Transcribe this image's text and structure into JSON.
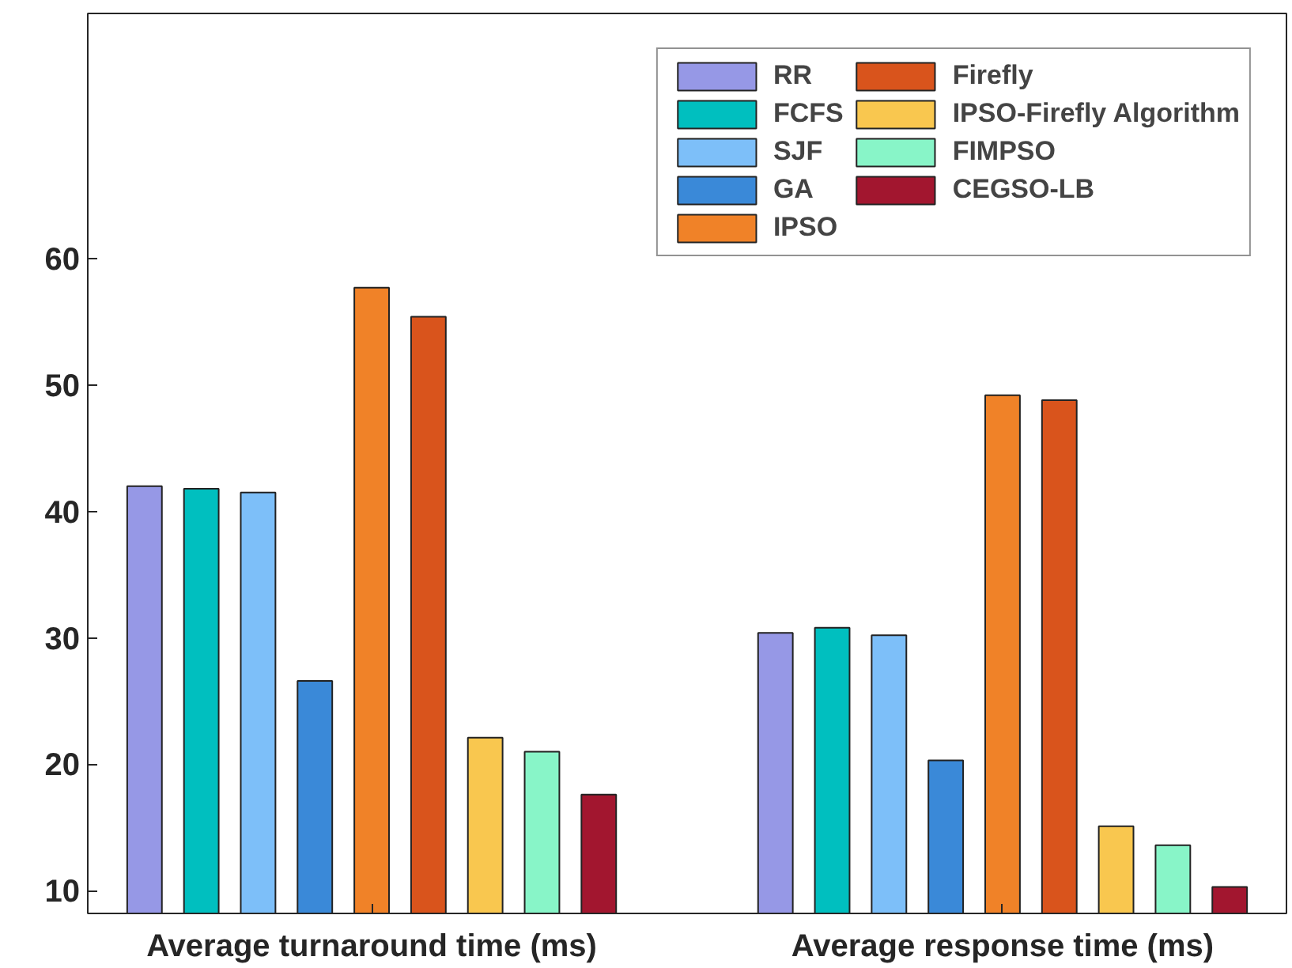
{
  "chart_data": {
    "type": "bar",
    "categories": [
      "Average turnaround time (ms)",
      "Average response time (ms)"
    ],
    "series": [
      {
        "name": "RR",
        "color": "#9698e6",
        "values": [
          42.0,
          30.4
        ]
      },
      {
        "name": "FCFS",
        "color": "#00bfbf",
        "values": [
          41.8,
          30.8
        ]
      },
      {
        "name": "SJF",
        "color": "#7dbff9",
        "values": [
          41.5,
          30.2
        ]
      },
      {
        "name": "GA",
        "color": "#3a89d8",
        "values": [
          26.6,
          20.3
        ]
      },
      {
        "name": "IPSO",
        "color": "#f08228",
        "values": [
          57.7,
          49.2
        ]
      },
      {
        "name": "Firefly",
        "color": "#d9541c",
        "values": [
          55.4,
          48.8
        ]
      },
      {
        "name": "IPSO-Firefly Algorithm",
        "color": "#f9c74f",
        "values": [
          22.1,
          15.1
        ]
      },
      {
        "name": "FIMPSO",
        "color": "#88f5c8",
        "values": [
          21.0,
          13.6
        ]
      },
      {
        "name": "CEGSO-LB",
        "color": "#a2162f",
        "values": [
          17.6,
          10.3
        ]
      }
    ],
    "ylim": [
      8.2,
      79.4
    ],
    "yticks": [
      10,
      20,
      30,
      40,
      50,
      60
    ],
    "grid": false,
    "legend": "top right"
  }
}
